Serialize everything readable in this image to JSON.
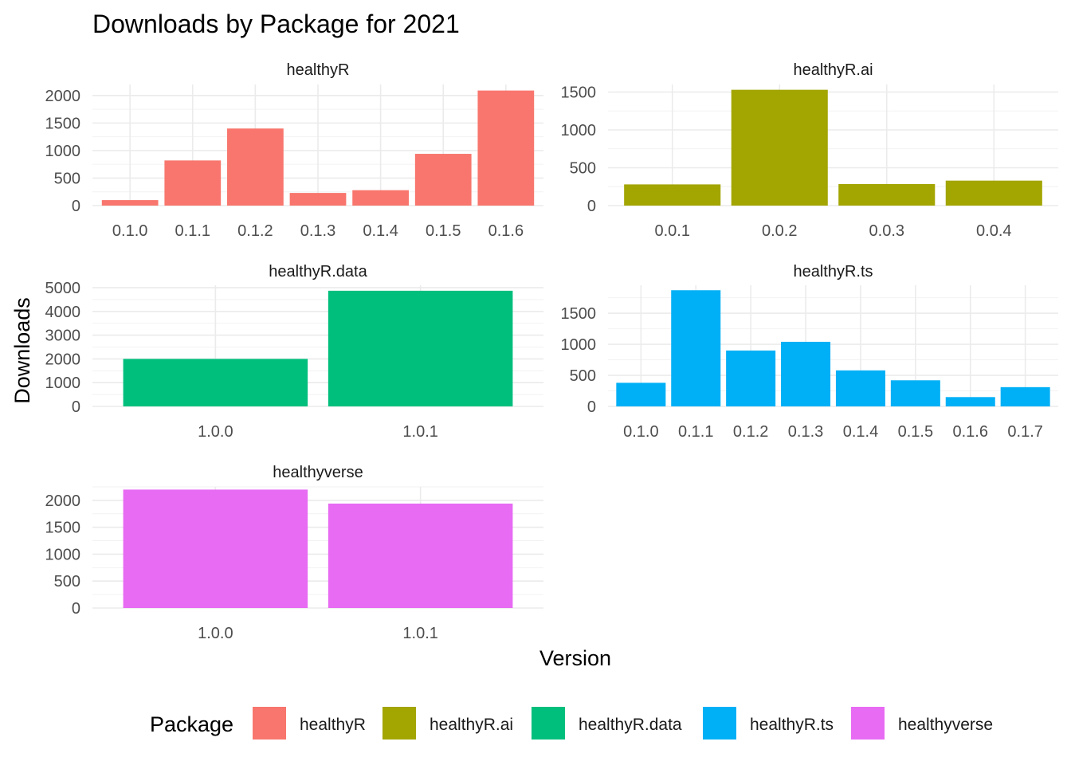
{
  "chart_data": {
    "type": "bar",
    "title": "Downloads by Package for 2021",
    "xlabel": "Version",
    "ylabel": "Downloads",
    "legend": {
      "title": "Package",
      "position": "bottom",
      "items": [
        {
          "name": "healthyR",
          "color": "#F8766D"
        },
        {
          "name": "healthyR.ai",
          "color": "#A3A500"
        },
        {
          "name": "healthyR.data",
          "color": "#00BF7D"
        },
        {
          "name": "healthyR.ts",
          "color": "#00B0F6"
        },
        {
          "name": "healthyverse",
          "color": "#E76BF3"
        }
      ]
    },
    "grid": true,
    "facets": [
      {
        "name": "healthyR",
        "color": "#F8766D",
        "categories": [
          "0.1.0",
          "0.1.1",
          "0.1.2",
          "0.1.3",
          "0.1.4",
          "0.1.5",
          "0.1.6"
        ],
        "values": [
          100,
          820,
          1400,
          230,
          280,
          940,
          2090
        ],
        "yticks": [
          0,
          500,
          1000,
          1500,
          2000
        ],
        "ylim": [
          0,
          2200
        ]
      },
      {
        "name": "healthyR.ai",
        "color": "#A3A500",
        "categories": [
          "0.0.1",
          "0.0.2",
          "0.0.3",
          "0.0.4"
        ],
        "values": [
          280,
          1530,
          285,
          330
        ],
        "yticks": [
          0,
          500,
          1000,
          1500
        ],
        "ylim": [
          0,
          1600
        ]
      },
      {
        "name": "healthyR.data",
        "color": "#00BF7D",
        "categories": [
          "1.0.0",
          "1.0.1"
        ],
        "values": [
          2000,
          4870
        ],
        "yticks": [
          0,
          1000,
          2000,
          3000,
          4000,
          5000
        ],
        "ylim": [
          0,
          5100
        ]
      },
      {
        "name": "healthyR.ts",
        "color": "#00B0F6",
        "categories": [
          "0.1.0",
          "0.1.1",
          "0.1.2",
          "0.1.3",
          "0.1.4",
          "0.1.5",
          "0.1.6",
          "0.1.7"
        ],
        "values": [
          380,
          1870,
          900,
          1040,
          580,
          420,
          150,
          310
        ],
        "yticks": [
          0,
          500,
          1000,
          1500
        ],
        "ylim": [
          0,
          1950
        ]
      },
      {
        "name": "healthyverse",
        "color": "#E76BF3",
        "categories": [
          "1.0.0",
          "1.0.1"
        ],
        "values": [
          2200,
          1940
        ],
        "yticks": [
          0,
          500,
          1000,
          1500,
          2000
        ],
        "ylim": [
          0,
          2250
        ]
      }
    ]
  }
}
